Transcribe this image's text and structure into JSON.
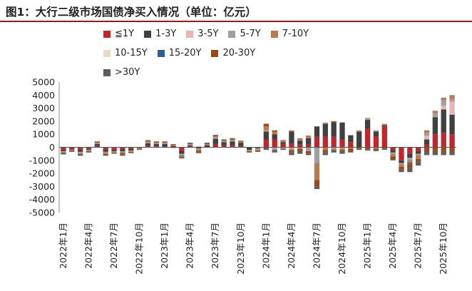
{
  "title": "图1：大行二级市场国债净买入情况（单位：亿元）",
  "chart_data": {
    "type": "bar",
    "stacked": true,
    "title": "图1：大行二级市场国债净买入情况（单位：亿元）",
    "ylim": [
      -5000,
      5000
    ],
    "yticks": [
      5000,
      4000,
      3000,
      2000,
      1000,
      0,
      -1000,
      -2000,
      -3000,
      -4000,
      -5000
    ],
    "legend_position": "top",
    "categories": [
      "2022-01",
      "2022-02",
      "2022-03",
      "2022-04",
      "2022-05",
      "2022-06",
      "2022-07",
      "2022-08",
      "2022-09",
      "2022-10",
      "2022-11",
      "2022-12",
      "2023-01",
      "2023-02",
      "2023-03",
      "2023-04",
      "2023-05",
      "2023-06",
      "2023-07",
      "2023-08",
      "2023-09",
      "2023-10",
      "2023-11",
      "2023-12",
      "2024-01",
      "2024-02",
      "2024-03",
      "2024-04",
      "2024-05",
      "2024-06",
      "2024-07",
      "2024-08",
      "2024-09",
      "2024-10",
      "2024-11",
      "2024-12",
      "2025-01",
      "2025-02",
      "2025-03",
      "2025-04",
      "2025-05",
      "2025-06",
      "2025-07",
      "2025-08",
      "2025-09",
      "2025-10",
      "2025-11"
    ],
    "x_tick_labels": [
      "2022年1月",
      "2022年4月",
      "2022年7月",
      "2022年10月",
      "2023年1月",
      "2023年4月",
      "2023年7月",
      "2023年10月",
      "2024年1月",
      "2024年4月",
      "2024年7月",
      "2024年10月",
      "2025年1月",
      "2025年4月",
      "2025年7月",
      "2025年10月"
    ],
    "series": [
      {
        "name": "≦1Y",
        "color": "#c0272d",
        "values": [
          -200,
          -150,
          -150,
          -100,
          100,
          -150,
          -200,
          -150,
          -100,
          0,
          100,
          100,
          50,
          -50,
          -300,
          50,
          50,
          0,
          250,
          150,
          150,
          100,
          0,
          -50,
          600,
          600,
          250,
          300,
          200,
          200,
          800,
          800,
          800,
          600,
          400,
          0,
          1400,
          800,
          1600,
          -200,
          -1000,
          -500,
          -300,
          200,
          1000,
          1100,
          1000
        ]
      },
      {
        "name": "1-3Y",
        "color": "#404040",
        "values": [
          -100,
          -50,
          -200,
          -100,
          150,
          -200,
          -100,
          -150,
          -150,
          -50,
          200,
          150,
          200,
          100,
          -200,
          100,
          -100,
          150,
          400,
          250,
          300,
          250,
          -200,
          -50,
          600,
          400,
          150,
          900,
          300,
          500,
          800,
          1000,
          1100,
          1300,
          500,
          1200,
          700,
          400,
          100,
          -200,
          -200,
          -300,
          -200,
          400,
          1300,
          1800,
          1500
        ]
      },
      {
        "name": "3-5Y",
        "color": "#e8b4b8",
        "values": [
          0,
          0,
          0,
          0,
          0,
          0,
          0,
          0,
          0,
          0,
          0,
          0,
          0,
          0,
          0,
          0,
          0,
          0,
          0,
          0,
          0,
          0,
          0,
          0,
          0,
          0,
          0,
          0,
          0,
          0,
          0,
          0,
          0,
          0,
          0,
          0,
          0,
          0,
          0,
          0,
          0,
          0,
          0,
          300,
          0,
          300,
          1000
        ]
      },
      {
        "name": "5-7Y",
        "color": "#a0a0a0",
        "values": [
          -50,
          0,
          -100,
          -50,
          50,
          -50,
          -50,
          -50,
          -50,
          0,
          50,
          50,
          50,
          0,
          -100,
          50,
          -50,
          0,
          100,
          50,
          50,
          0,
          -50,
          -100,
          100,
          -200,
          -100,
          -200,
          -100,
          -300,
          -1200,
          100,
          -100,
          -100,
          50,
          50,
          100,
          100,
          50,
          -100,
          -100,
          -200,
          -100,
          200,
          300,
          400,
          200
        ]
      },
      {
        "name": "7-10Y",
        "color": "#b87a50",
        "values": [
          -50,
          -50,
          -50,
          -50,
          50,
          -100,
          -50,
          -100,
          -50,
          -50,
          100,
          50,
          50,
          50,
          -100,
          50,
          -100,
          100,
          100,
          50,
          100,
          50,
          -50,
          -50,
          300,
          200,
          100,
          100,
          200,
          200,
          -1300,
          -200,
          -100,
          -100,
          -100,
          50,
          50,
          -100,
          50,
          -200,
          -200,
          -200,
          -300,
          200,
          200,
          200,
          300
        ]
      },
      {
        "name": "10-15Y",
        "color": "#e8dcc0",
        "values": [
          0,
          0,
          0,
          0,
          0,
          0,
          0,
          0,
          0,
          0,
          0,
          0,
          0,
          0,
          0,
          0,
          0,
          0,
          0,
          0,
          0,
          0,
          0,
          0,
          0,
          0,
          0,
          0,
          0,
          0,
          0,
          0,
          0,
          0,
          0,
          0,
          0,
          0,
          0,
          0,
          0,
          0,
          0,
          0,
          0,
          0,
          0
        ]
      },
      {
        "name": "15-20Y",
        "color": "#2e5e96",
        "values": [
          0,
          0,
          0,
          0,
          0,
          0,
          0,
          0,
          0,
          0,
          0,
          0,
          0,
          0,
          0,
          0,
          0,
          0,
          0,
          0,
          0,
          0,
          0,
          0,
          0,
          0,
          0,
          0,
          0,
          0,
          0,
          0,
          0,
          0,
          0,
          0,
          0,
          0,
          0,
          0,
          0,
          -100,
          0,
          0,
          0,
          0,
          0
        ]
      },
      {
        "name": "20-30Y",
        "color": "#9a4a14",
        "values": [
          -50,
          -50,
          -50,
          -50,
          50,
          -50,
          -50,
          -100,
          -50,
          -50,
          50,
          50,
          50,
          50,
          -50,
          50,
          -100,
          50,
          50,
          50,
          50,
          50,
          -50,
          -50,
          200,
          100,
          50,
          -200,
          -200,
          -200,
          -500,
          -200,
          100,
          -100,
          -200,
          -100,
          -150,
          -100,
          -100,
          -200,
          -200,
          -300,
          -200,
          -300,
          -300,
          -300,
          -300
        ]
      },
      {
        "name": ">30Y",
        "color": "#5e5e5e",
        "values": [
          -100,
          -50,
          -100,
          -50,
          50,
          -100,
          -50,
          -100,
          -50,
          -50,
          50,
          50,
          50,
          50,
          -100,
          50,
          -100,
          50,
          50,
          50,
          50,
          50,
          -50,
          -50,
          -200,
          -200,
          -100,
          -200,
          -200,
          -100,
          -200,
          -200,
          -200,
          -200,
          -100,
          -100,
          -100,
          -100,
          -100,
          -100,
          -200,
          -300,
          -300,
          -300,
          -300,
          -300,
          -300
        ]
      }
    ]
  }
}
